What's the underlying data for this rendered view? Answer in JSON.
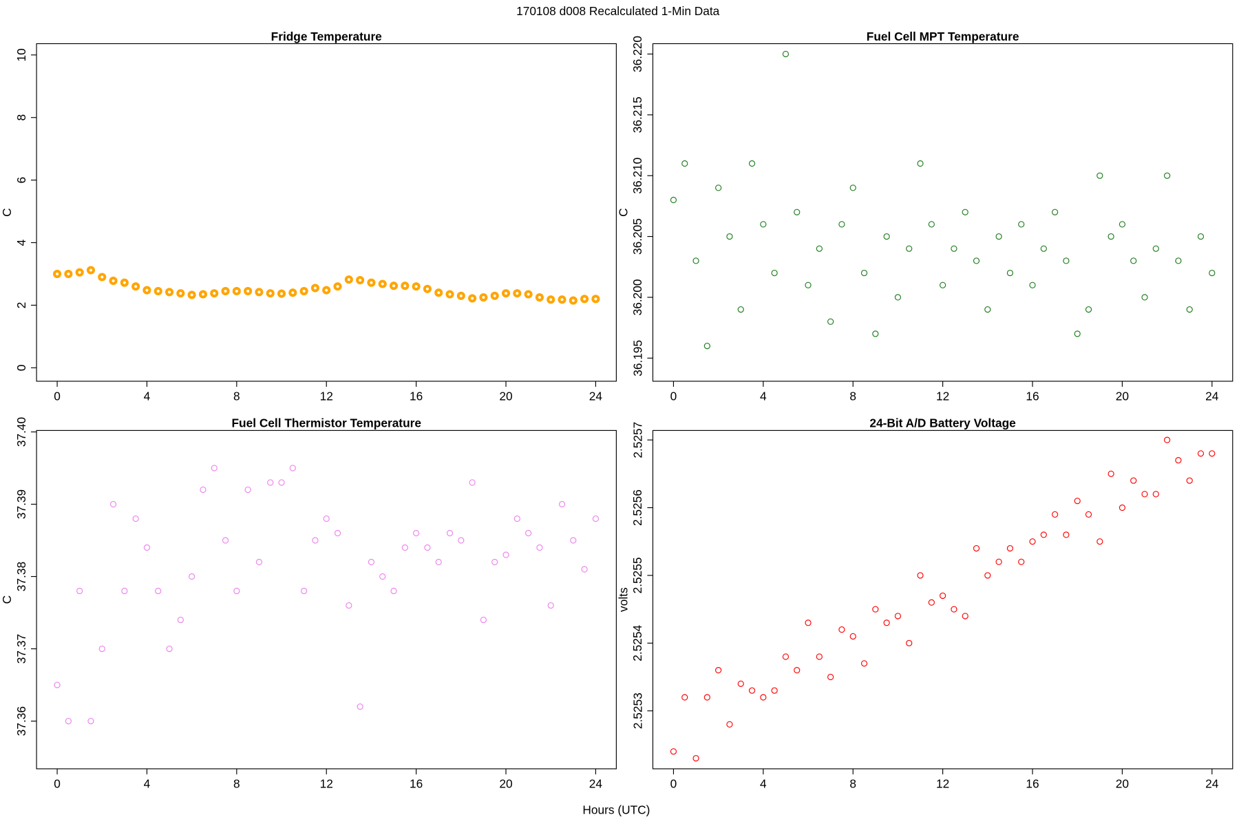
{
  "suptitle": "170108   d008   Recalculated 1-Min Data",
  "xlabel": "Hours (UTC)",
  "chart_data": [
    {
      "type": "scatter",
      "title": "Fridge Temperature",
      "ylabel": "C",
      "color": "#ffa500",
      "x": [
        0,
        0.5,
        1,
        1.5,
        2,
        2.5,
        3,
        3.5,
        4,
        4.5,
        5,
        5.5,
        6,
        6.5,
        7,
        7.5,
        8,
        8.5,
        9,
        9.5,
        10,
        10.5,
        11,
        11.5,
        12,
        12.5,
        13,
        13.5,
        14,
        14.5,
        15,
        15.5,
        16,
        16.5,
        17,
        17.5,
        18,
        18.5,
        19,
        19.5,
        20,
        20.5,
        21,
        21.5,
        22,
        22.5,
        23,
        23.5,
        24
      ],
      "values": [
        3.0,
        3.0,
        3.05,
        3.12,
        2.9,
        2.78,
        2.72,
        2.6,
        2.48,
        2.45,
        2.42,
        2.38,
        2.33,
        2.35,
        2.38,
        2.45,
        2.45,
        2.45,
        2.42,
        2.38,
        2.37,
        2.4,
        2.45,
        2.55,
        2.48,
        2.6,
        2.82,
        2.8,
        2.72,
        2.68,
        2.62,
        2.62,
        2.6,
        2.52,
        2.4,
        2.35,
        2.3,
        2.22,
        2.25,
        2.3,
        2.38,
        2.38,
        2.35,
        2.25,
        2.18,
        2.18,
        2.15,
        2.2,
        2.2
      ],
      "xlim": [
        -0.92,
        24.92
      ],
      "xticks": [
        0,
        4,
        8,
        12,
        16,
        20,
        24
      ],
      "ylim": [
        -0.43,
        10.36
      ],
      "yticks": [
        0,
        2,
        4,
        6,
        8,
        10
      ]
    },
    {
      "type": "scatter",
      "title": "Fuel Cell MPT Temperature",
      "ylabel": "C",
      "color": "#1e7d1e",
      "x": [
        0,
        0.5,
        1,
        1.5,
        2,
        2.5,
        3,
        3.5,
        4,
        4.5,
        5,
        5.5,
        6,
        6.5,
        7,
        7.5,
        8,
        8.5,
        9,
        9.5,
        10,
        10.5,
        11,
        11.5,
        12,
        12.5,
        13,
        13.5,
        14,
        14.5,
        15,
        15.5,
        16,
        16.5,
        17,
        17.5,
        18,
        18.5,
        19,
        19.5,
        20,
        20.5,
        21,
        21.5,
        22,
        22.5,
        23,
        23.5,
        24
      ],
      "values": [
        36.208,
        36.211,
        36.203,
        36.196,
        36.209,
        36.205,
        36.199,
        36.211,
        36.206,
        36.202,
        36.22,
        36.207,
        36.201,
        36.204,
        36.198,
        36.206,
        36.209,
        36.202,
        36.197,
        36.205,
        36.2,
        36.204,
        36.211,
        36.206,
        36.201,
        36.204,
        36.207,
        36.203,
        36.199,
        36.205,
        36.202,
        36.206,
        36.201,
        36.204,
        36.207,
        36.203,
        36.197,
        36.199,
        36.21,
        36.205,
        36.206,
        36.203,
        36.2,
        36.204,
        36.21,
        36.203,
        36.199,
        36.205,
        36.202
      ],
      "xlim": [
        -0.92,
        24.92
      ],
      "xticks": [
        0,
        4,
        8,
        12,
        16,
        20,
        24
      ],
      "ylim": [
        36.1931,
        36.22085
      ],
      "yticks": [
        36.195,
        {
          "value": 36.2,
          "label": "36.200"
        },
        36.205,
        {
          "value": 36.21,
          "label": "36.210"
        },
        36.215,
        {
          "value": 36.22,
          "label": "36.220"
        }
      ]
    },
    {
      "type": "scatter",
      "title": "Fuel Cell Thermistor Temperature",
      "ylabel": "C",
      "color": "#ee82ee",
      "x": [
        0,
        0.5,
        1,
        1.5,
        2,
        2.5,
        3,
        3.5,
        4,
        4.5,
        5,
        5.5,
        6,
        6.5,
        7,
        7.5,
        8,
        8.5,
        9,
        9.5,
        10,
        10.5,
        11,
        11.5,
        12,
        12.5,
        13,
        13.5,
        14,
        14.5,
        15,
        15.5,
        16,
        16.5,
        17,
        17.5,
        18,
        18.5,
        19,
        19.5,
        20,
        20.5,
        21,
        21.5,
        22,
        22.5,
        23,
        23.5,
        24
      ],
      "values": [
        37.365,
        37.36,
        37.378,
        37.36,
        37.37,
        37.39,
        37.378,
        37.388,
        37.384,
        37.378,
        37.37,
        37.374,
        37.38,
        37.392,
        37.395,
        37.385,
        37.378,
        37.392,
        37.382,
        37.393,
        37.393,
        37.395,
        37.378,
        37.385,
        37.388,
        37.386,
        37.376,
        37.362,
        37.382,
        37.38,
        37.378,
        37.384,
        37.386,
        37.384,
        37.382,
        37.386,
        37.385,
        37.393,
        37.374,
        37.382,
        37.383,
        37.388,
        37.386,
        37.384,
        37.376,
        37.39,
        37.385,
        37.381,
        37.388
      ],
      "xlim": [
        -0.92,
        24.92
      ],
      "xticks": [
        0,
        4,
        8,
        12,
        16,
        20,
        24
      ],
      "ylim": [
        37.3534,
        37.4002
      ],
      "yticks": [
        37.36,
        37.37,
        37.38,
        37.39,
        {
          "value": 37.4,
          "label": "37.40"
        }
      ]
    },
    {
      "type": "scatter",
      "title": "24-Bit A/D Battery Voltage",
      "ylabel": "volts",
      "color": "#ff0000",
      "x": [
        0,
        0.5,
        1,
        1.5,
        2,
        2.5,
        3,
        3.5,
        4,
        4.5,
        5,
        5.5,
        6,
        6.5,
        7,
        7.5,
        8,
        8.5,
        9,
        9.5,
        10,
        10.5,
        11,
        11.5,
        12,
        12.5,
        13,
        13.5,
        14,
        14.5,
        15,
        15.5,
        16,
        16.5,
        17,
        17.5,
        18,
        18.5,
        19,
        19.5,
        20,
        20.5,
        21,
        21.5,
        22,
        22.5,
        23,
        23.5,
        24
      ],
      "values": [
        2.52524,
        2.52532,
        2.52523,
        2.52532,
        2.52536,
        2.52528,
        2.52534,
        2.52533,
        2.52532,
        2.52533,
        2.52538,
        2.52536,
        2.52543,
        2.52538,
        2.52535,
        2.52542,
        2.52541,
        2.52537,
        2.52545,
        2.52543,
        2.52544,
        2.5254,
        2.5255,
        2.52546,
        2.52547,
        2.52545,
        2.52544,
        2.52554,
        2.5255,
        2.52552,
        2.52554,
        2.52552,
        2.52555,
        2.52556,
        2.52559,
        2.52556,
        2.52561,
        2.52559,
        2.52555,
        2.52565,
        2.5256,
        2.52564,
        2.52562,
        2.52562,
        2.5257,
        2.52567,
        2.52564,
        2.52568,
        2.52568
      ],
      "xlim": [
        -0.92,
        24.92
      ],
      "xticks": [
        0,
        4,
        8,
        12,
        16,
        20,
        24
      ],
      "ylim": [
        2.5252144,
        2.525714
      ],
      "yticks": [
        2.5253,
        2.5254,
        2.5255,
        2.5256,
        2.5257
      ]
    }
  ]
}
